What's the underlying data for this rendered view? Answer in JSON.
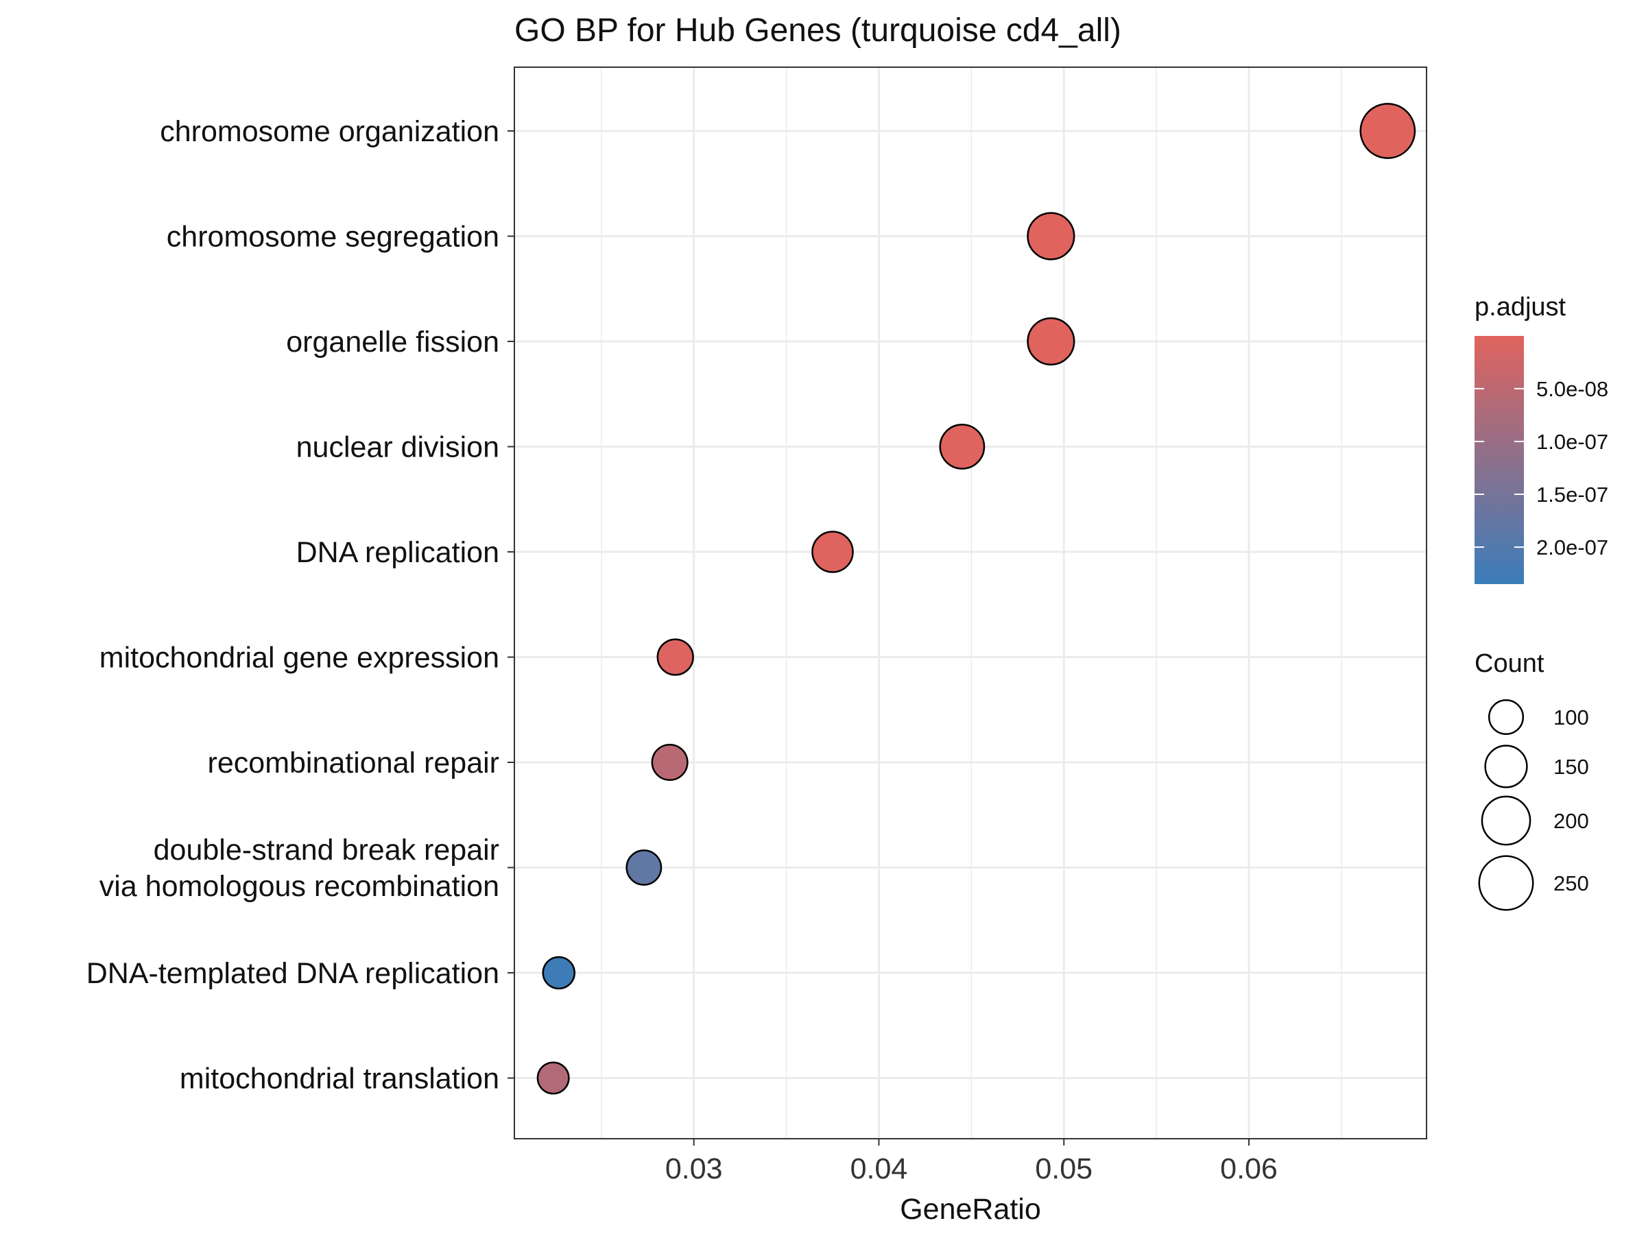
{
  "chart_data": {
    "type": "scatter",
    "title": "GO BP for Hub Genes (turquoise cd4_all)",
    "xlabel": "GeneRatio",
    "ylabel": "",
    "xlim": [
      0.0203,
      0.0696
    ],
    "xticks": [
      0.03,
      0.04,
      0.05,
      0.06
    ],
    "xtick_labels": [
      "0.03",
      "0.04",
      "0.05",
      "0.06"
    ],
    "grid": true,
    "categories": [
      "chromosome organization",
      "chromosome segregation",
      "organelle fission",
      "nuclear division",
      "DNA replication",
      "mitochondrial gene expression",
      "recombinational repair",
      "double-strand break repair\nvia homologous recombination",
      "DNA-templated DNA replication",
      "mitochondrial translation"
    ],
    "points": [
      {
        "term": "chromosome organization",
        "gene_ratio": 0.0675,
        "count": 255,
        "p_adjust": 1e-10
      },
      {
        "term": "chromosome segregation",
        "gene_ratio": 0.0493,
        "count": 186,
        "p_adjust": 1e-10
      },
      {
        "term": "organelle fission",
        "gene_ratio": 0.0493,
        "count": 186,
        "p_adjust": 1e-10
      },
      {
        "term": "nuclear division",
        "gene_ratio": 0.0445,
        "count": 168,
        "p_adjust": 1e-09
      },
      {
        "term": "DNA replication",
        "gene_ratio": 0.0375,
        "count": 142,
        "p_adjust": 2e-09
      },
      {
        "term": "mitochondrial gene expression",
        "gene_ratio": 0.029,
        "count": 109,
        "p_adjust": 5e-09
      },
      {
        "term": "recombinational repair",
        "gene_ratio": 0.0287,
        "count": 108,
        "p_adjust": 5.5e-08
      },
      {
        "term": "double-strand break repair\nvia homologous recombination",
        "gene_ratio": 0.0273,
        "count": 103,
        "p_adjust": 1.8e-07
      },
      {
        "term": "DNA-templated DNA replication",
        "gene_ratio": 0.0227,
        "count": 86,
        "p_adjust": 2.3e-07
      },
      {
        "term": "mitochondrial translation",
        "gene_ratio": 0.0224,
        "count": 84,
        "p_adjust": 6.5e-08
      }
    ],
    "color_legend": {
      "title": "p.adjust",
      "range": [
        1e-10,
        2.35e-07
      ],
      "low_color": "#E0635E",
      "high_color": "#3A7DBA",
      "ticks": [
        5e-08,
        1e-07,
        1.5e-07,
        2e-07
      ],
      "tick_labels": [
        "5.0e-08",
        "1.0e-07",
        "1.5e-07",
        "2.0e-07"
      ]
    },
    "size_legend": {
      "title": "Count",
      "values": [
        100,
        150,
        200,
        250
      ],
      "labels": [
        "100",
        "150",
        "200",
        "250"
      ]
    },
    "legend_placement": "right"
  }
}
